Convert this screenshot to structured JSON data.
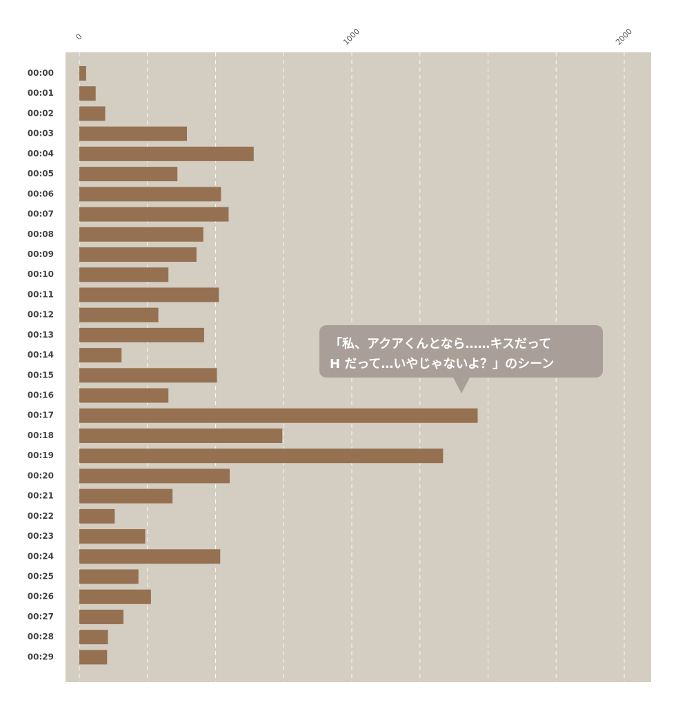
{
  "colors": {
    "plot_background": "#d4cdc1",
    "bar": "#957152",
    "grid": "#ffffff",
    "callout_background": "#aa9f98"
  },
  "chart_data": {
    "type": "bar",
    "orientation": "horizontal",
    "categories": [
      "00:00",
      "00:01",
      "00:02",
      "00:03",
      "00:04",
      "00:05",
      "00:06",
      "00:07",
      "00:08",
      "00:09",
      "00:10",
      "00:11",
      "00:12",
      "00:13",
      "00:14",
      "00:15",
      "00:16",
      "00:17",
      "00:18",
      "00:19",
      "00:20",
      "00:21",
      "00:22",
      "00:23",
      "00:24",
      "00:25",
      "00:26",
      "00:27",
      "00:28",
      "00:29"
    ],
    "values": [
      25,
      60,
      95,
      395,
      640,
      360,
      520,
      548,
      455,
      430,
      327,
      512,
      290,
      458,
      155,
      505,
      327,
      1462,
      745,
      1335,
      552,
      342,
      130,
      242,
      517,
      217,
      263,
      162,
      105,
      102
    ],
    "xlim": [
      -50,
      2100
    ],
    "xticks": [
      0,
      1000,
      2000
    ],
    "grid": "vertical-dashed",
    "title": "",
    "xlabel": "",
    "ylabel": "",
    "annotations": [
      {
        "lines": [
          "「私、アクアくんとなら……キスだって",
          "H だって…いやじゃないよ？」のシーン"
        ],
        "category": "00:17"
      }
    ]
  }
}
